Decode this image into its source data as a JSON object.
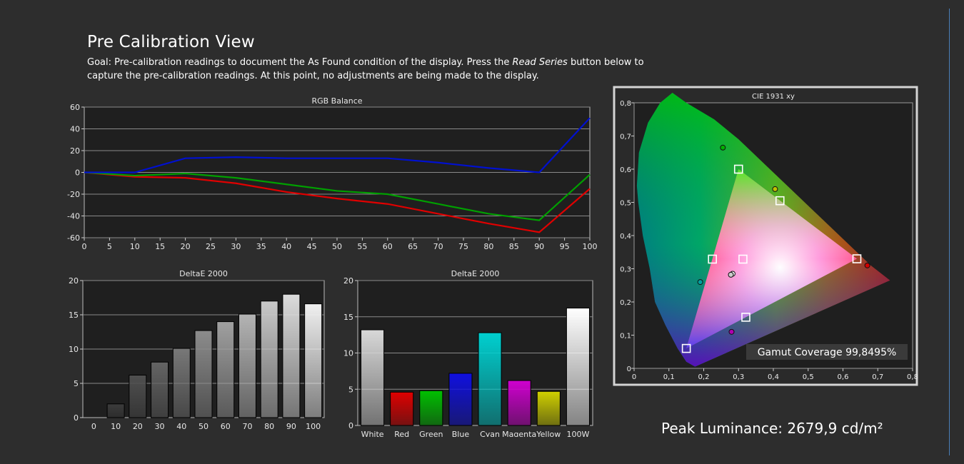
{
  "page": {
    "title": "Pre Calibration View",
    "goal_prefix": "Goal: Pre-calibration readings to document the As Found condition of the display. Press the ",
    "goal_italic": "Read Series",
    "goal_suffix": " button below to capture the pre-calibration readings. At this point, no adjustments are being made to the display.",
    "peak_luminance": "Peak Luminance: 2679,9 cd/m²",
    "gamut_coverage": "Gamut Coverage 99,8495%"
  },
  "colors": {
    "background": "#2d2d2d",
    "plot_bg": "#1f1f1f",
    "red": "#e00000",
    "green": "#00a000",
    "blue": "#0010d0"
  },
  "chart_data": [
    {
      "id": "rgb",
      "type": "line",
      "title": "RGB Balance",
      "x": [
        0,
        10,
        20,
        30,
        40,
        50,
        60,
        70,
        80,
        90,
        100
      ],
      "xticks": [
        0,
        5,
        10,
        15,
        20,
        25,
        30,
        35,
        40,
        45,
        50,
        55,
        60,
        65,
        70,
        75,
        80,
        85,
        90,
        95,
        100
      ],
      "yticks": [
        -60,
        -40,
        -20,
        0,
        20,
        40,
        60
      ],
      "xlim": [
        0,
        100
      ],
      "ylim": [
        -60,
        60
      ],
      "grid": true,
      "series": [
        {
          "color": "#e00000",
          "values": [
            0,
            -4,
            -5,
            -10,
            -18,
            -24,
            -29,
            -38,
            -47,
            -55,
            -15
          ]
        },
        {
          "color": "#00a000",
          "values": [
            0,
            -3,
            -1,
            -5,
            -11,
            -17,
            -20,
            -29,
            -38,
            -44,
            -2
          ]
        },
        {
          "color": "#0010d0",
          "values": [
            0,
            0,
            13,
            14,
            13,
            13,
            13,
            9,
            4,
            0,
            50
          ]
        }
      ]
    },
    {
      "id": "de_gray",
      "type": "bar",
      "title": "DeltaE 2000",
      "categories": [
        "0",
        "10",
        "20",
        "30",
        "40",
        "50",
        "60",
        "70",
        "80",
        "90",
        "100"
      ],
      "values": [
        0,
        2.0,
        6.2,
        8.1,
        10.1,
        12.7,
        14.0,
        15.1,
        17.0,
        18.0,
        16.6
      ],
      "ylim": [
        0,
        20
      ],
      "yticks": [
        0,
        5,
        10,
        15,
        20
      ]
    },
    {
      "id": "de_color",
      "type": "bar",
      "title": "DeltaE 2000",
      "categories": [
        "White",
        "Red",
        "Green",
        "Blue",
        "Cyan",
        "Magenta",
        "Yellow",
        "100W"
      ],
      "values": [
        13.2,
        4.6,
        4.8,
        7.2,
        12.8,
        6.2,
        4.7,
        16.2
      ],
      "bar_colors": [
        "#d8d8d8",
        "#e00000",
        "#00c000",
        "#1010e0",
        "#00d0d0",
        "#d000d0",
        "#d0d000",
        "#ffffff"
      ],
      "ylim": [
        0,
        20
      ],
      "yticks": [
        0,
        5,
        10,
        15,
        20
      ]
    },
    {
      "id": "cie",
      "type": "scatter",
      "title": "CIE 1931 xy",
      "xticks": [
        "0",
        "0,1",
        "0,2",
        "0,3",
        "0,4",
        "0,5",
        "0,6",
        "0,7",
        "0,8"
      ],
      "yticks": [
        "0",
        "0,1",
        "0,2",
        "0,3",
        "0,4",
        "0,5",
        "0,6",
        "0,7",
        "0,8"
      ],
      "xlim": [
        0,
        0.8
      ],
      "ylim": [
        0,
        0.8
      ],
      "target_points": [
        [
          0.64,
          0.33
        ],
        [
          0.3,
          0.6
        ],
        [
          0.15,
          0.06
        ],
        [
          0.225,
          0.329
        ],
        [
          0.321,
          0.154
        ],
        [
          0.419,
          0.505
        ],
        [
          0.3127,
          0.329
        ]
      ],
      "measured_points": [
        {
          "x": 0.67,
          "y": 0.31,
          "color": "#d00000"
        },
        {
          "x": 0.255,
          "y": 0.665,
          "color": "#00b000"
        },
        {
          "x": 0.19,
          "y": 0.26,
          "color": "#00a0a0"
        },
        {
          "x": 0.28,
          "y": 0.11,
          "color": "#b000b0"
        },
        {
          "x": 0.405,
          "y": 0.54,
          "color": "#c0c000"
        },
        {
          "x": 0.283,
          "y": 0.285,
          "color": "#ffffff"
        },
        {
          "x": 0.278,
          "y": 0.282,
          "color": "#cccccc"
        }
      ]
    }
  ]
}
